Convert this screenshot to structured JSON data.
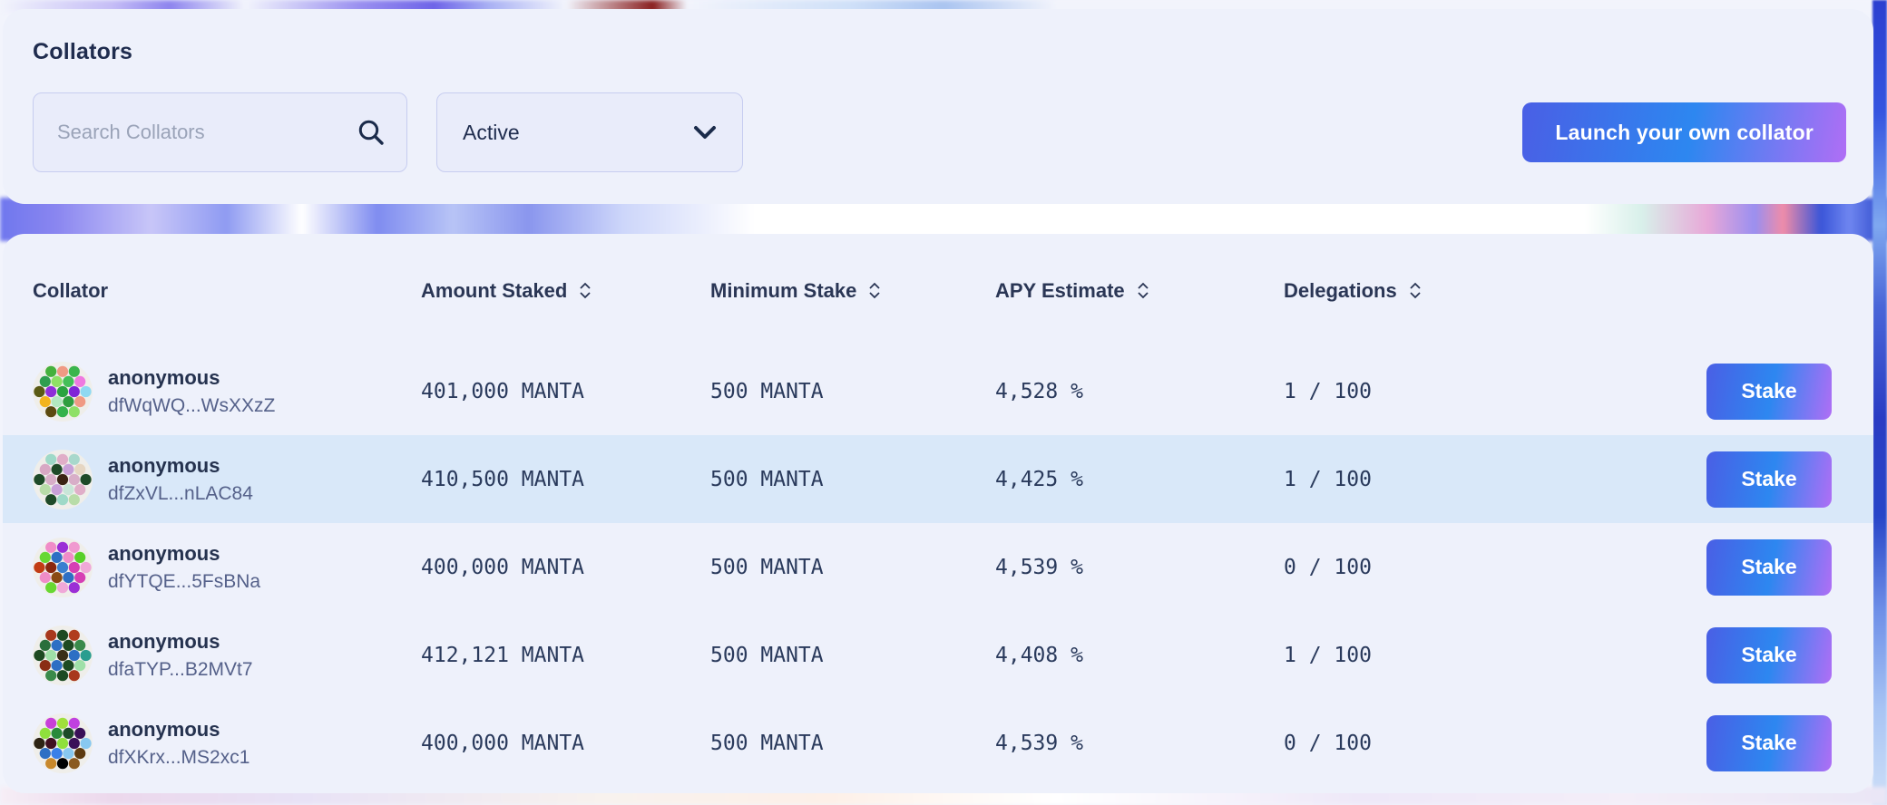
{
  "header": {
    "title": "Collators",
    "search": {
      "placeholder": "Search Collators",
      "value": "",
      "icon": "search-icon"
    },
    "filter": {
      "value": "Active",
      "icon": "chevron-down-icon"
    },
    "launch_button_label": "Launch your own collator"
  },
  "table": {
    "columns": [
      {
        "label": "Collator",
        "sortable": false
      },
      {
        "label": "Amount Staked",
        "sortable": true
      },
      {
        "label": "Minimum Stake",
        "sortable": true
      },
      {
        "label": "APY Estimate",
        "sortable": true
      },
      {
        "label": "Delegations",
        "sortable": true
      }
    ],
    "sort_icon": "sort-updown-icon",
    "stake_button_label": "Stake",
    "rows": [
      {
        "name": "anonymous",
        "address": "dfWqWQ...WsXXzZ",
        "amount_staked": "401,000 MANTA",
        "minimum_stake": "500 MANTA",
        "apy_estimate": "4,528 %",
        "delegations": "1 / 100",
        "highlighted": false,
        "avatar_colors": [
          "#45b13c",
          "#f09a84",
          "#3bb54d",
          "#2f9e4f",
          "#8fe066",
          "#44bf58",
          "#ef7ae0",
          "#5a5a14",
          "#8e2fd8",
          "#2aa33f",
          "#8024d6",
          "#8fd9f2",
          "#f2b41e",
          "#b2e8c0",
          "#2f9e3f",
          "#f09a84",
          "#5c4a10",
          "#35b24a",
          "#8fe066"
        ]
      },
      {
        "name": "anonymous",
        "address": "dfZxVL...nLAC84",
        "amount_staked": "410,500 MANTA",
        "minimum_stake": "500 MANTA",
        "apy_estimate": "4,425 %",
        "delegations": "1 / 100",
        "highlighted": true,
        "avatar_colors": [
          "#9ed9c8",
          "#e0aec8",
          "#a8d8cc",
          "#d8a8c4",
          "#1e4a28",
          "#c8a0d8",
          "#e6d6c2",
          "#1e4a28",
          "#d8aec8",
          "#3a2414",
          "#d8aec8",
          "#1e4a28",
          "#b8dca8",
          "#c8a0d8",
          "#c8e6d8",
          "#e0aec8",
          "#1e4a28",
          "#9ed9c8",
          "#b8dca8"
        ]
      },
      {
        "name": "anonymous",
        "address": "dfYTQE...5FsBNa",
        "amount_staked": "400,000 MANTA",
        "minimum_stake": "500 MANTA",
        "apy_estimate": "4,539 %",
        "delegations": "0 / 100",
        "highlighted": false,
        "avatar_colors": [
          "#f08cc8",
          "#9b2fd6",
          "#f09ad0",
          "#68d832",
          "#2d6fc4",
          "#f08cc8",
          "#58d028",
          "#c23c14",
          "#8a2810",
          "#3a7fd0",
          "#d63fb4",
          "#f0a8d8",
          "#f08cc8",
          "#8a4a14",
          "#2d6fc4",
          "#d63fb4",
          "#68d832",
          "#f0a8d8",
          "#9b2fd6"
        ]
      },
      {
        "name": "anonymous",
        "address": "dfaTYP...B2MVt7",
        "amount_staked": "412,121 MANTA",
        "minimum_stake": "500 MANTA",
        "apy_estimate": "4,408 %",
        "delegations": "1 / 100",
        "highlighted": false,
        "avatar_colors": [
          "#a8381c",
          "#1d4a22",
          "#b03c1e",
          "#2a6f3c",
          "#2d6fc4",
          "#1d4a22",
          "#3a8a4a",
          "#1d4a22",
          "#9fe0a8",
          "#3a2e18",
          "#2d6fc4",
          "#2a9d8f",
          "#8a2e14",
          "#2d6fc4",
          "#1d4a22",
          "#9fe0a8",
          "#3a8a4a",
          "#1d4a22",
          "#a8381c"
        ]
      },
      {
        "name": "anonymous",
        "address": "dfXKrx...MS2xc1",
        "amount_staked": "400,000 MANTA",
        "minimum_stake": "500 MANTA",
        "apy_estimate": "4,539 %",
        "delegations": "0 / 100",
        "highlighted": false,
        "avatar_colors": [
          "#c83fd8",
          "#9fe03c",
          "#c040e0",
          "#8fe03c",
          "#2a8a3a",
          "#1d4a28",
          "#3a1058",
          "#2d2414",
          "#401020",
          "#8fe03c",
          "#3a1058",
          "#88c8f0",
          "#2d6fc4",
          "#3a80e8",
          "#88c8f0",
          "#5c3a10",
          "#c8882b",
          "#f0ddа0",
          "#8a5a20"
        ]
      }
    ]
  },
  "colors": {
    "accent_gradient_start": "#4a5fe5",
    "accent_gradient_mid": "#2d87f0",
    "accent_gradient_end": "#b06ef5",
    "row_highlight": "#d9e8f9",
    "panel_background": "#eef1fb",
    "text_primary": "#25324f",
    "text_mono": "#2a3a5c"
  }
}
